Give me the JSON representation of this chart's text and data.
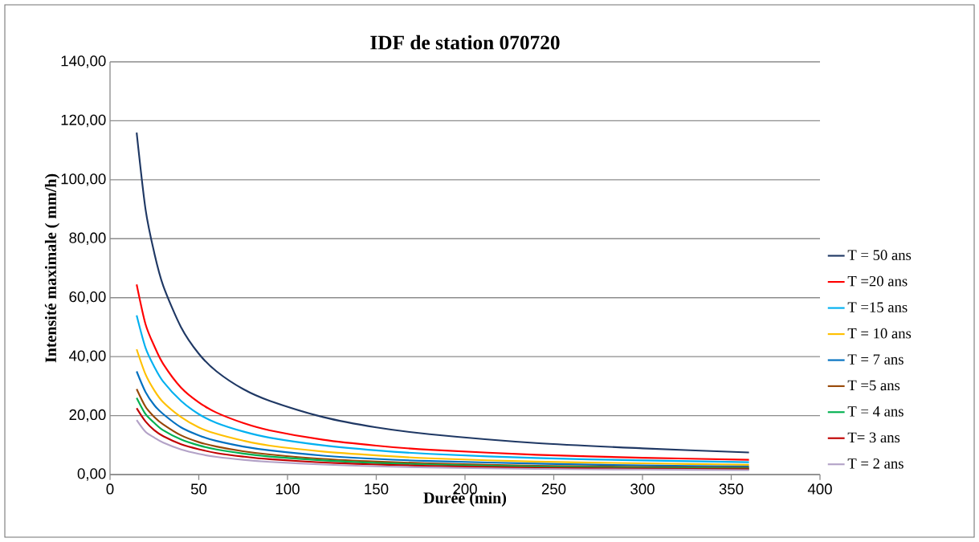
{
  "chart_data": {
    "type": "line",
    "title": "IDF de station 070720",
    "xlabel": "Durée (min)",
    "ylabel": "Intensité maximale ( mm/h)",
    "x": [
      15,
      20,
      25,
      30,
      40,
      50,
      60,
      75,
      90,
      120,
      150,
      180,
      240,
      300,
      360
    ],
    "series": [
      {
        "name": "T = 50 ans",
        "color": "#1f3864",
        "values": [
          116,
          90,
          75,
          64,
          50,
          41,
          35,
          29,
          25,
          19.5,
          16,
          13.7,
          10.7,
          8.9,
          7.5
        ]
      },
      {
        "name": "T =20 ans",
        "color": "#ff0000",
        "values": [
          64.5,
          51,
          43.5,
          37.5,
          29.5,
          24.5,
          21,
          17.5,
          15,
          11.8,
          9.8,
          8.4,
          6.7,
          5.7,
          5.0
        ]
      },
      {
        "name": "T =15 ans",
        "color": "#00b0f0",
        "values": [
          54,
          43,
          36.5,
          31.5,
          25,
          20.5,
          17.5,
          14.6,
          12.5,
          9.9,
          8.2,
          7.0,
          5.6,
          4.8,
          4.2
        ]
      },
      {
        "name": "T = 10 ans",
        "color": "#ffc000",
        "values": [
          42.5,
          34,
          28.5,
          24.5,
          19.5,
          16,
          13.8,
          11.5,
          9.8,
          7.8,
          6.5,
          5.5,
          4.4,
          3.8,
          3.3
        ]
      },
      {
        "name": "T = 7 ans",
        "color": "#0070c0",
        "values": [
          35,
          28,
          23.5,
          20.5,
          16,
          13.3,
          11.4,
          9.5,
          8.2,
          6.4,
          5.3,
          4.6,
          3.7,
          3.1,
          2.7
        ]
      },
      {
        "name": "T =5 ans",
        "color": "#974706",
        "values": [
          29,
          23,
          19.5,
          17,
          13.3,
          11,
          9.5,
          7.9,
          6.8,
          5.3,
          4.4,
          3.8,
          3.0,
          2.6,
          2.3
        ]
      },
      {
        "name": "T = 4 ans",
        "color": "#00b050",
        "values": [
          26,
          20.5,
          17.5,
          15,
          11.9,
          9.9,
          8.5,
          7.1,
          6.1,
          4.8,
          3.9,
          3.4,
          2.7,
          2.3,
          2.0
        ]
      },
      {
        "name": "T= 3 ans",
        "color": "#c00000",
        "values": [
          22.5,
          18,
          15,
          13,
          10.3,
          8.6,
          7.3,
          6.1,
          5.2,
          4.1,
          3.4,
          2.9,
          2.3,
          2.0,
          1.8
        ]
      },
      {
        "name": "T = 2 ans",
        "color": "#b3a2c7",
        "values": [
          18.5,
          14.5,
          12.5,
          10.8,
          8.5,
          7.0,
          6.0,
          5.0,
          4.3,
          3.4,
          2.8,
          2.4,
          1.9,
          1.7,
          1.5
        ]
      }
    ],
    "xlim": [
      0,
      400
    ],
    "xticks": [
      0,
      50,
      100,
      150,
      200,
      250,
      300,
      350,
      400
    ],
    "ylim": [
      0,
      140
    ],
    "yticks": [
      {
        "value": 0,
        "label": "0,00"
      },
      {
        "value": 20,
        "label": "20,00"
      },
      {
        "value": 40,
        "label": "40,00"
      },
      {
        "value": 60,
        "label": "60,00"
      },
      {
        "value": 80,
        "label": "80,00"
      },
      {
        "value": 100,
        "label": "100,00"
      },
      {
        "value": 120,
        "label": "120,00"
      },
      {
        "value": 140,
        "label": "140,00"
      }
    ],
    "grid": "y",
    "legend": "right",
    "marker": "none",
    "line_style": "solid"
  }
}
